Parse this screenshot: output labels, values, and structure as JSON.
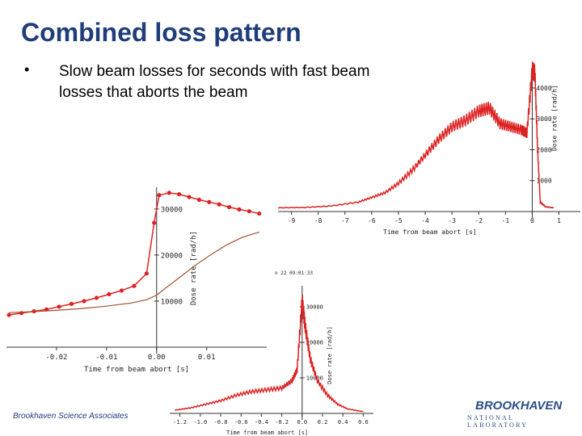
{
  "slide": {
    "title": "Combined loss pattern",
    "bullet_symbol": "•",
    "bullet_text": "Slow beam losses for seconds with fast beam losses that aborts the beam"
  },
  "footer": {
    "left_text": "Brookhaven Science Associates",
    "logo_main": "BROOKHAVEN",
    "logo_sub": "NATIONAL LABORATORY"
  },
  "colors": {
    "title": "#1f3d7a",
    "red_trace": "#dd2222",
    "brown_trace": "#a0522d",
    "axis": "#333333"
  },
  "chart_data": [
    {
      "type": "line",
      "name": "left-plot",
      "xlabel": "Time from beam abort [s]",
      "ylabel": "Dose rate [rad/h]",
      "xticks": [
        "-0.02",
        "-0.01",
        "0.00",
        "0.01"
      ],
      "yticks": [
        "10000",
        "20000",
        "30000"
      ],
      "xlim": [
        -0.03,
        0.022
      ],
      "ylim": [
        0,
        34000
      ],
      "series": [
        {
          "name": "red-dotted",
          "x": [
            -0.0295,
            -0.027,
            -0.0245,
            -0.022,
            -0.0195,
            -0.017,
            -0.0145,
            -0.012,
            -0.0095,
            -0.007,
            -0.0045,
            -0.002,
            -0.0005,
            0.0005,
            0.0025,
            0.0045,
            0.0065,
            0.0085,
            0.0105,
            0.0125,
            0.0145,
            0.0165,
            0.0185,
            0.0205
          ],
          "y": [
            7000,
            7400,
            7800,
            8200,
            8800,
            9400,
            10000,
            10700,
            11500,
            12300,
            13300,
            16000,
            27000,
            33000,
            33500,
            33200,
            32600,
            32000,
            31500,
            31000,
            30400,
            29900,
            29500,
            29000
          ]
        },
        {
          "name": "brown-smooth",
          "x": [
            -0.0295,
            -0.025,
            -0.02,
            -0.015,
            -0.01,
            -0.005,
            -0.002,
            0.0,
            0.002,
            0.005,
            0.008,
            0.011,
            0.014,
            0.017,
            0.0205
          ],
          "y": [
            7500,
            7700,
            8000,
            8400,
            8900,
            9600,
            10300,
            11300,
            13000,
            15500,
            18000,
            20200,
            22200,
            23800,
            25000
          ]
        }
      ]
    },
    {
      "type": "line",
      "name": "top-right-plot",
      "xlabel": "Time from beam abort [s]",
      "ylabel": "Dose rate [rad/h]",
      "xticks": [
        "-9",
        "-8",
        "-7",
        "-6",
        "-5",
        "-4",
        "-3",
        "-2",
        "-1",
        "0",
        "1"
      ],
      "yticks": [
        "1000",
        "2000",
        "3000",
        "4000"
      ],
      "xlim": [
        -9.5,
        1.8
      ],
      "ylim": [
        0,
        4600
      ],
      "series": [
        {
          "name": "slow-loss",
          "x": [
            -9.5,
            -8.5,
            -7.5,
            -6.5,
            -6.0,
            -5.5,
            -5.0,
            -4.5,
            -4.0,
            -3.5,
            -3.0,
            -2.5,
            -2.0,
            -1.6,
            -1.2,
            -0.8,
            -0.4,
            -0.2,
            0.0,
            0.1,
            0.2,
            0.3,
            0.5,
            0.8
          ],
          "y": [
            120,
            130,
            180,
            300,
            450,
            600,
            900,
            1300,
            1800,
            2300,
            2700,
            2900,
            3200,
            3300,
            2800,
            2700,
            2600,
            2500,
            4500,
            4400,
            2000,
            300,
            150,
            120
          ]
        }
      ]
    },
    {
      "type": "line",
      "name": "bottom-middle-plot",
      "xlabel": "Time from beam abort [s]",
      "ylabel": "Dose rate [rad/h]",
      "xticks": [
        "-1.2",
        "-1.0",
        "-0.8",
        "-0.6",
        "-0.4",
        "-0.2",
        "0.0",
        "0.2",
        "0.4",
        "0.6"
      ],
      "yticks": [
        "10000",
        "20000",
        "30000"
      ],
      "xlim": [
        -1.3,
        0.7
      ],
      "ylim": [
        0,
        35000
      ],
      "header_text": "n 22 09:01:33",
      "series": [
        {
          "name": "fast-loss",
          "x": [
            -1.25,
            -1.1,
            -0.95,
            -0.8,
            -0.65,
            -0.5,
            -0.35,
            -0.2,
            -0.1,
            -0.05,
            0.0,
            0.03,
            0.08,
            0.15,
            0.25,
            0.35,
            0.45,
            0.6
          ],
          "y": [
            900,
            1500,
            2500,
            3500,
            5000,
            6000,
            6500,
            7000,
            9000,
            12000,
            31000,
            24000,
            15000,
            9000,
            5000,
            2500,
            1200,
            500
          ]
        }
      ]
    }
  ]
}
